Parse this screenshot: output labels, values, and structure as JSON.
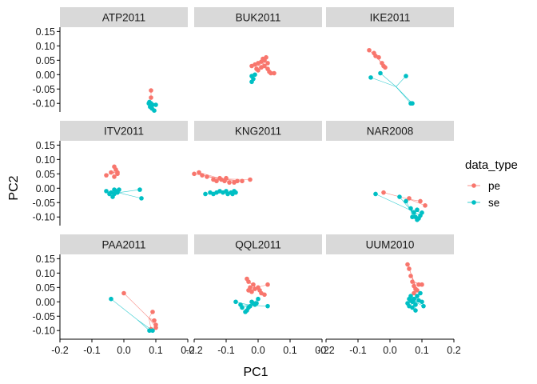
{
  "chart_data": {
    "type": "scatter",
    "xlabel": "PC1",
    "ylabel": "PC2",
    "xlim": [
      -0.2,
      0.2
    ],
    "ylim": [
      -0.13,
      0.165
    ],
    "x_ticks": [
      -0.2,
      -0.1,
      0.0,
      0.1,
      0.2
    ],
    "x_tick_labels": [
      "-0.2",
      "-0.1",
      "0.0",
      "0.1",
      "0.2"
    ],
    "y_ticks": [
      -0.1,
      -0.05,
      0.0,
      0.05,
      0.1,
      0.15
    ],
    "y_tick_labels": [
      "-0.10",
      "-0.05",
      "0.00",
      "0.05",
      "0.10",
      "0.15"
    ],
    "legend": {
      "title": "data_type",
      "placement": "right",
      "entries": [
        {
          "label": "pe",
          "color": "#F8766D"
        },
        {
          "label": "se",
          "color": "#00BFC4"
        }
      ]
    },
    "panels": [
      {
        "title": "ATP2011",
        "series": [
          {
            "name": "pe",
            "points": [
              [
                0.085,
                -0.055
              ],
              [
                0.085,
                -0.08
              ]
            ]
          },
          {
            "name": "se",
            "points": [
              [
                0.08,
                -0.095
              ],
              [
                0.085,
                -0.1
              ],
              [
                0.09,
                -0.105
              ],
              [
                0.082,
                -0.112
              ],
              [
                0.088,
                -0.118
              ],
              [
                0.095,
                -0.125
              ],
              [
                0.1,
                -0.105
              ],
              [
                0.078,
                -0.1
              ]
            ]
          }
        ]
      },
      {
        "title": "BUK2011",
        "series": [
          {
            "name": "pe",
            "points": [
              [
                -0.02,
                0.03
              ],
              [
                -0.01,
                0.035
              ],
              [
                0.0,
                0.04
              ],
              [
                0.01,
                0.045
              ],
              [
                0.02,
                0.05
              ],
              [
                0.025,
                0.06
              ],
              [
                0.015,
                0.055
              ],
              [
                0.03,
                0.04
              ],
              [
                0.03,
                0.02
              ],
              [
                0.035,
                0.01
              ],
              [
                0.04,
                0.005
              ],
              [
                0.05,
                0.005
              ],
              [
                0.02,
                0.03
              ],
              [
                0.01,
                0.025
              ],
              [
                0.0,
                0.015
              ],
              [
                -0.005,
                0.02
              ]
            ]
          },
          {
            "name": "se",
            "points": [
              [
                -0.02,
                -0.005
              ],
              [
                -0.015,
                -0.015
              ],
              [
                -0.02,
                -0.025
              ],
              [
                -0.01,
                0.0
              ]
            ]
          }
        ]
      },
      {
        "title": "IKE2011",
        "series": [
          {
            "name": "pe",
            "points": [
              [
                -0.065,
                0.085
              ],
              [
                -0.05,
                0.075
              ],
              [
                -0.045,
                0.065
              ],
              [
                -0.035,
                0.06
              ],
              [
                -0.025,
                0.04
              ],
              [
                -0.02,
                0.03
              ],
              [
                -0.015,
                0.025
              ]
            ]
          },
          {
            "name": "se",
            "points": [
              [
                -0.06,
                -0.01
              ],
              [
                -0.03,
                0.005
              ],
              [
                0.05,
                -0.005
              ],
              [
                0.065,
                -0.1
              ],
              [
                0.07,
                -0.1
              ]
            ]
          }
        ]
      },
      {
        "title": "ITV2011",
        "series": [
          {
            "name": "pe",
            "points": [
              [
                -0.055,
                0.045
              ],
              [
                -0.04,
                0.055
              ],
              [
                -0.03,
                0.04
              ],
              [
                -0.03,
                0.075
              ],
              [
                -0.025,
                0.065
              ],
              [
                -0.02,
                0.055
              ],
              [
                -0.02,
                0.05
              ]
            ]
          },
          {
            "name": "se",
            "points": [
              [
                -0.055,
                -0.01
              ],
              [
                -0.045,
                -0.02
              ],
              [
                -0.04,
                -0.015
              ],
              [
                -0.035,
                -0.03
              ],
              [
                -0.03,
                -0.02
              ],
              [
                -0.03,
                -0.005
              ],
              [
                -0.025,
                -0.01
              ],
              [
                -0.02,
                -0.015
              ],
              [
                -0.015,
                -0.005
              ],
              [
                0.05,
                -0.005
              ],
              [
                0.055,
                -0.035
              ]
            ]
          }
        ]
      },
      {
        "title": "KNG2011",
        "series": [
          {
            "name": "pe",
            "points": [
              [
                -0.2,
                0.05
              ],
              [
                -0.185,
                0.055
              ],
              [
                -0.175,
                0.045
              ],
              [
                -0.16,
                0.04
              ],
              [
                -0.14,
                0.03
              ],
              [
                -0.13,
                0.025
              ],
              [
                -0.12,
                0.035
              ],
              [
                -0.115,
                0.03
              ],
              [
                -0.105,
                0.025
              ],
              [
                -0.1,
                0.035
              ],
              [
                -0.09,
                0.02
              ],
              [
                -0.075,
                0.02
              ],
              [
                -0.065,
                0.025
              ],
              [
                -0.05,
                0.025
              ],
              [
                -0.025,
                0.03
              ]
            ]
          },
          {
            "name": "se",
            "points": [
              [
                -0.165,
                -0.02
              ],
              [
                -0.15,
                -0.015
              ],
              [
                -0.14,
                -0.02
              ],
              [
                -0.13,
                -0.015
              ],
              [
                -0.12,
                -0.01
              ],
              [
                -0.11,
                -0.015
              ],
              [
                -0.1,
                -0.01
              ],
              [
                -0.095,
                -0.02
              ],
              [
                -0.085,
                -0.015
              ],
              [
                -0.08,
                -0.02
              ],
              [
                -0.075,
                -0.01
              ],
              [
                -0.07,
                -0.015
              ]
            ]
          }
        ]
      },
      {
        "title": "NAR2008",
        "series": [
          {
            "name": "pe",
            "points": [
              [
                -0.02,
                -0.015
              ],
              [
                0.06,
                -0.035
              ],
              [
                0.095,
                -0.045
              ],
              [
                0.11,
                -0.06
              ]
            ]
          },
          {
            "name": "se",
            "points": [
              [
                -0.045,
                -0.02
              ],
              [
                0.03,
                -0.03
              ],
              [
                0.05,
                -0.045
              ],
              [
                0.065,
                -0.07
              ],
              [
                0.075,
                -0.085
              ],
              [
                0.08,
                -0.1
              ],
              [
                0.09,
                -0.105
              ],
              [
                0.085,
                -0.075
              ],
              [
                0.1,
                -0.085
              ],
              [
                0.095,
                -0.095
              ],
              [
                0.07,
                -0.1
              ],
              [
                0.085,
                -0.11
              ]
            ]
          }
        ]
      },
      {
        "title": "PAA2011",
        "series": [
          {
            "name": "pe",
            "points": [
              [
                0.0,
                0.03
              ],
              [
                0.09,
                -0.035
              ],
              [
                0.095,
                -0.065
              ],
              [
                0.1,
                -0.08
              ],
              [
                0.1,
                -0.09
              ],
              [
                0.085,
                -0.095
              ]
            ]
          },
          {
            "name": "se",
            "points": [
              [
                -0.04,
                0.01
              ],
              [
                0.08,
                -0.1
              ],
              [
                0.09,
                -0.1
              ]
            ]
          }
        ]
      },
      {
        "title": "QQL2011",
        "series": [
          {
            "name": "pe",
            "points": [
              [
                -0.035,
                0.08
              ],
              [
                -0.03,
                0.07
              ],
              [
                -0.025,
                0.05
              ],
              [
                -0.015,
                0.06
              ],
              [
                -0.01,
                0.045
              ],
              [
                -0.02,
                0.035
              ],
              [
                -0.03,
                0.04
              ],
              [
                0.0,
                0.05
              ],
              [
                0.005,
                0.04
              ],
              [
                0.01,
                0.03
              ],
              [
                0.02,
                0.025
              ],
              [
                0.03,
                0.06
              ]
            ]
          },
          {
            "name": "se",
            "points": [
              [
                -0.07,
                0.0
              ],
              [
                -0.055,
                -0.01
              ],
              [
                -0.05,
                -0.02
              ],
              [
                -0.04,
                -0.035
              ],
              [
                -0.035,
                -0.03
              ],
              [
                -0.03,
                -0.02
              ],
              [
                -0.025,
                -0.015
              ],
              [
                -0.02,
                0.0
              ],
              [
                -0.015,
                -0.005
              ],
              [
                -0.01,
                -0.01
              ],
              [
                -0.005,
                -0.005
              ],
              [
                0.0,
                0.01
              ],
              [
                0.03,
                -0.015
              ]
            ]
          }
        ]
      },
      {
        "title": "UUM2010",
        "series": [
          {
            "name": "pe",
            "points": [
              [
                0.055,
                0.13
              ],
              [
                0.06,
                0.115
              ],
              [
                0.065,
                0.09
              ],
              [
                0.07,
                0.07
              ],
              [
                0.075,
                0.055
              ],
              [
                0.08,
                0.045
              ],
              [
                0.085,
                0.04
              ],
              [
                0.09,
                0.06
              ],
              [
                0.1,
                0.06
              ],
              [
                0.075,
                0.03
              ]
            ]
          },
          {
            "name": "se",
            "points": [
              [
                0.055,
                -0.005
              ],
              [
                0.06,
                0.01
              ],
              [
                0.065,
                0.02
              ],
              [
                0.07,
                0.0
              ],
              [
                0.075,
                0.01
              ],
              [
                0.08,
                -0.01
              ],
              [
                0.085,
                0.02
              ],
              [
                0.09,
                0.005
              ],
              [
                0.095,
                0.03
              ],
              [
                0.1,
                0.0
              ],
              [
                0.07,
                -0.02
              ],
              [
                0.08,
                -0.03
              ],
              [
                0.105,
                -0.015
              ],
              [
                0.06,
                -0.015
              ],
              [
                0.065,
                0.005
              ]
            ]
          }
        ]
      }
    ]
  }
}
